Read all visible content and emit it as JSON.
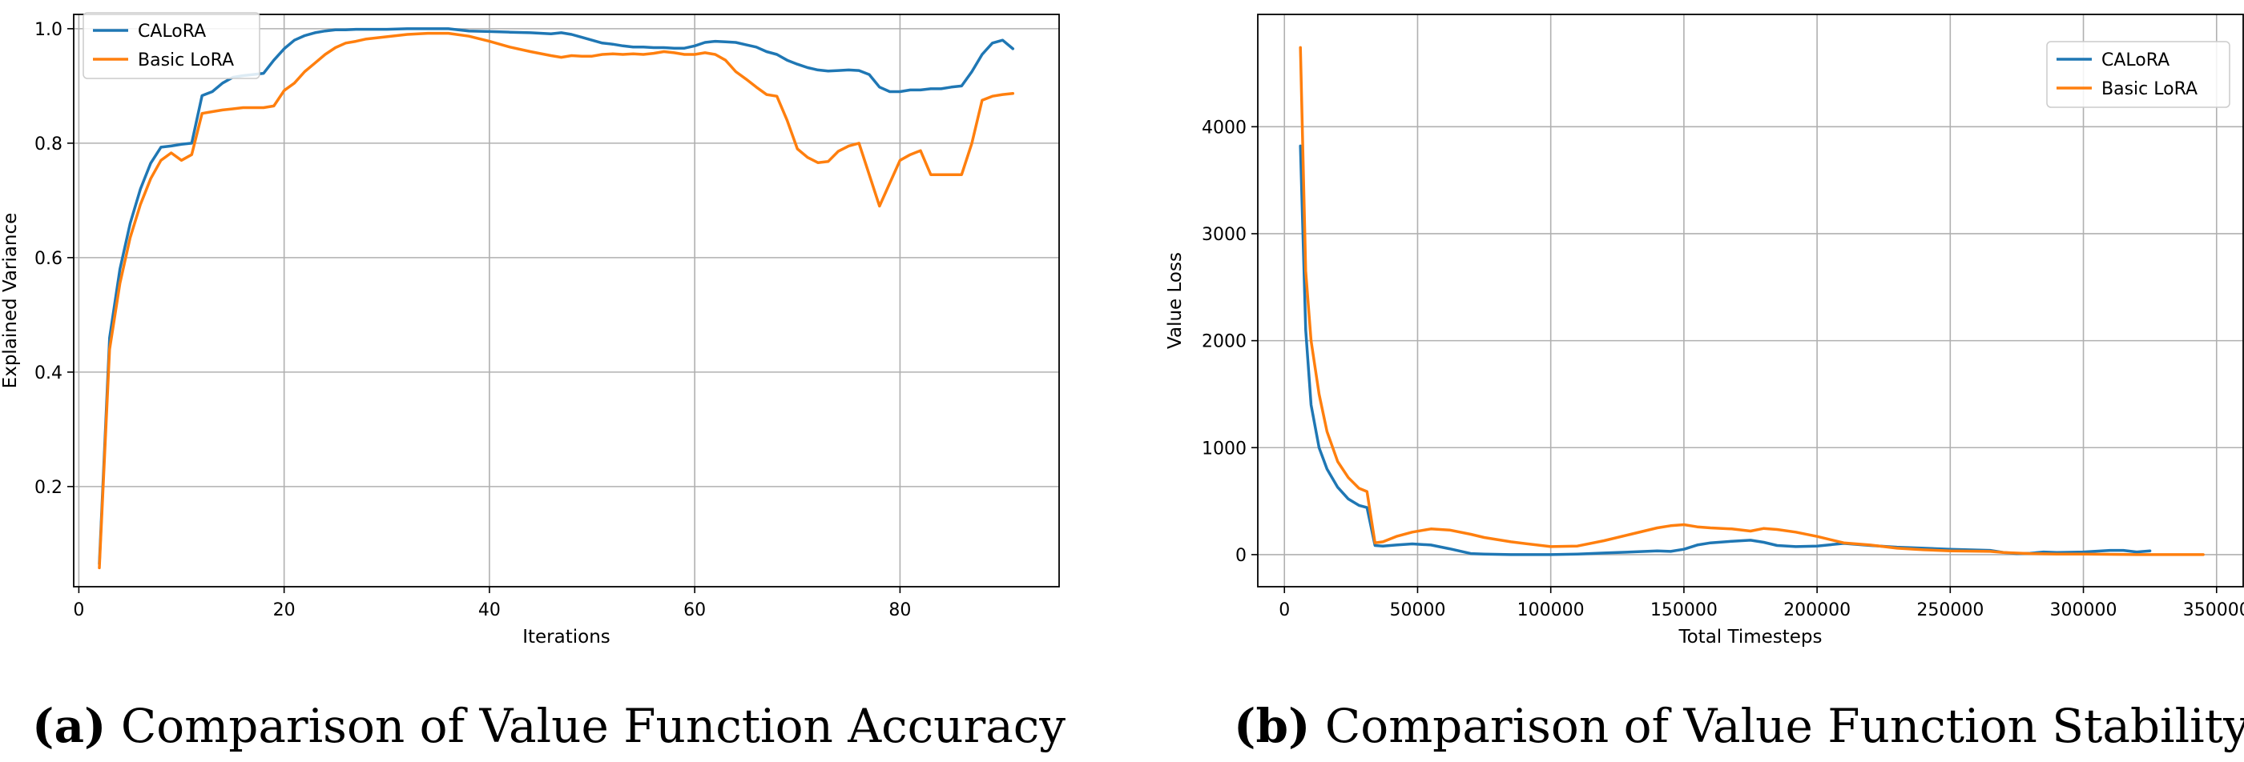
{
  "colors": {
    "calora": "#1f77b4",
    "basic_lora": "#ff7f0e",
    "grid": "#b0b0b0",
    "axis": "#000000"
  },
  "captions": [
    {
      "label": "(a)",
      "text": "Comparison of Value Function Accuracy"
    },
    {
      "label": "(b)",
      "text": "Comparison of Value Function Stability"
    }
  ],
  "chart_data": [
    {
      "type": "line",
      "title": "",
      "xlabel": "Iterations",
      "ylabel": "Explained Variance",
      "xlim": [
        -0.5,
        95.5
      ],
      "ylim": [
        0.025,
        1.025
      ],
      "xticks": [
        0,
        20,
        40,
        60,
        80
      ],
      "xtick_labels": [
        "0",
        "20",
        "40",
        "60",
        "80"
      ],
      "yticks": [
        0.2,
        0.4,
        0.6,
        0.8,
        1.0
      ],
      "ytick_labels": [
        "0.2",
        "0.4",
        "0.6",
        "0.8",
        "1.0"
      ],
      "grid": true,
      "legend_position": "top-left",
      "series": [
        {
          "name": "CALoRA",
          "x": [
            2,
            3,
            4,
            5,
            6,
            7,
            8,
            9,
            10,
            11,
            12,
            13,
            14,
            15,
            16,
            17,
            18,
            19,
            20,
            21,
            22,
            23,
            24,
            25,
            26,
            27,
            28,
            30,
            32,
            34,
            36,
            38,
            40,
            42,
            44,
            46,
            47,
            48,
            49,
            50,
            51,
            52,
            53,
            54,
            55,
            56,
            57,
            58,
            59,
            60,
            61,
            62,
            63,
            64,
            65,
            66,
            67,
            68,
            69,
            70,
            71,
            72,
            73,
            74,
            75,
            76,
            77,
            78,
            79,
            80,
            81,
            82,
            83,
            84,
            85,
            86,
            87,
            88,
            89,
            90,
            91
          ],
          "y": [
            0.065,
            0.46,
            0.58,
            0.66,
            0.72,
            0.765,
            0.793,
            0.795,
            0.798,
            0.8,
            0.883,
            0.89,
            0.905,
            0.915,
            0.918,
            0.92,
            0.922,
            0.945,
            0.965,
            0.98,
            0.988,
            0.993,
            0.996,
            0.998,
            0.998,
            0.999,
            0.999,
            0.999,
            1.0,
            1.0,
            1.0,
            0.996,
            0.995,
            0.994,
            0.993,
            0.991,
            0.993,
            0.99,
            0.985,
            0.98,
            0.975,
            0.973,
            0.97,
            0.968,
            0.968,
            0.967,
            0.967,
            0.966,
            0.966,
            0.97,
            0.976,
            0.978,
            0.977,
            0.976,
            0.972,
            0.968,
            0.96,
            0.955,
            0.945,
            0.938,
            0.932,
            0.928,
            0.926,
            0.927,
            0.928,
            0.927,
            0.92,
            0.898,
            0.89,
            0.89,
            0.893,
            0.893,
            0.895,
            0.895,
            0.898,
            0.9,
            0.925,
            0.955,
            0.975,
            0.98,
            0.965
          ]
        },
        {
          "name": "Basic LoRA",
          "x": [
            2,
            3,
            4,
            5,
            6,
            7,
            8,
            9,
            10,
            11,
            12,
            13,
            14,
            15,
            16,
            17,
            18,
            19,
            20,
            21,
            22,
            23,
            24,
            25,
            26,
            27,
            28,
            30,
            32,
            34,
            36,
            38,
            40,
            42,
            44,
            46,
            47,
            48,
            49,
            50,
            51,
            52,
            53,
            54,
            55,
            56,
            57,
            58,
            59,
            60,
            61,
            62,
            63,
            64,
            65,
            66,
            67,
            68,
            69,
            70,
            71,
            72,
            73,
            74,
            75,
            76,
            77,
            78,
            79,
            80,
            81,
            82,
            83,
            84,
            85,
            86,
            87,
            88,
            89,
            90,
            91
          ],
          "y": [
            0.058,
            0.44,
            0.555,
            0.635,
            0.693,
            0.738,
            0.77,
            0.783,
            0.77,
            0.78,
            0.852,
            0.855,
            0.858,
            0.86,
            0.862,
            0.862,
            0.862,
            0.865,
            0.892,
            0.905,
            0.925,
            0.94,
            0.955,
            0.967,
            0.975,
            0.978,
            0.982,
            0.986,
            0.99,
            0.992,
            0.992,
            0.987,
            0.978,
            0.968,
            0.96,
            0.953,
            0.95,
            0.953,
            0.952,
            0.952,
            0.955,
            0.956,
            0.955,
            0.956,
            0.955,
            0.957,
            0.96,
            0.958,
            0.955,
            0.955,
            0.958,
            0.955,
            0.945,
            0.925,
            0.912,
            0.898,
            0.885,
            0.882,
            0.84,
            0.79,
            0.775,
            0.766,
            0.768,
            0.786,
            0.795,
            0.8,
            0.745,
            0.69,
            0.73,
            0.77,
            0.78,
            0.787,
            0.745,
            0.745,
            0.745,
            0.745,
            0.8,
            0.875,
            0.882,
            0.885,
            0.887
          ]
        }
      ]
    },
    {
      "type": "line",
      "title": "",
      "xlabel": "Total Timesteps",
      "ylabel": "Value Loss",
      "xlim": [
        -10000,
        360000
      ],
      "ylim": [
        -300,
        5050
      ],
      "xticks": [
        0,
        50000,
        100000,
        150000,
        200000,
        250000,
        300000,
        350000
      ],
      "xtick_labels": [
        "0",
        "50000",
        "100000",
        "150000",
        "200000",
        "250000",
        "300000",
        "350000"
      ],
      "yticks": [
        0,
        1000,
        2000,
        3000,
        4000
      ],
      "ytick_labels": [
        "0",
        "1000",
        "2000",
        "3000",
        "4000"
      ],
      "grid": true,
      "legend_position": "top-right",
      "series": [
        {
          "name": "CALoRA",
          "x": [
            6000,
            8000,
            10000,
            13000,
            16000,
            20000,
            24000,
            28000,
            31000,
            34000,
            37000,
            42000,
            48000,
            55000,
            62000,
            70000,
            75000,
            85000,
            100000,
            110000,
            120000,
            130000,
            140000,
            145000,
            150000,
            155000,
            160000,
            168000,
            175000,
            180000,
            185000,
            192000,
            200000,
            210000,
            220000,
            230000,
            240000,
            250000,
            265000,
            270000,
            275000,
            280000,
            285000,
            290000,
            300000,
            310000,
            315000,
            320000,
            325000
          ],
          "y": [
            3820,
            2100,
            1400,
            1000,
            800,
            630,
            520,
            460,
            440,
            85,
            80,
            90,
            100,
            90,
            55,
            10,
            5,
            0,
            0,
            5,
            15,
            25,
            35,
            30,
            50,
            90,
            110,
            125,
            135,
            115,
            85,
            75,
            80,
            105,
            85,
            70,
            60,
            50,
            40,
            20,
            10,
            12,
            25,
            20,
            25,
            40,
            40,
            25,
            35
          ]
        },
        {
          "name": "Basic LoRA",
          "x": [
            6000,
            8000,
            10000,
            13000,
            16000,
            20000,
            24000,
            28000,
            31000,
            34000,
            37000,
            42000,
            48000,
            55000,
            62000,
            70000,
            75000,
            85000,
            100000,
            110000,
            120000,
            130000,
            140000,
            145000,
            150000,
            155000,
            160000,
            168000,
            175000,
            180000,
            185000,
            192000,
            200000,
            210000,
            220000,
            230000,
            240000,
            250000,
            265000,
            270000,
            280000,
            290000,
            300000,
            320000,
            345000
          ],
          "y": [
            4740,
            2650,
            2000,
            1500,
            1150,
            870,
            720,
            620,
            590,
            110,
            120,
            170,
            210,
            240,
            230,
            190,
            160,
            120,
            75,
            80,
            130,
            190,
            250,
            270,
            280,
            260,
            250,
            240,
            220,
            245,
            235,
            210,
            170,
            110,
            90,
            60,
            45,
            35,
            30,
            20,
            10,
            5,
            5,
            0,
            0
          ]
        }
      ]
    }
  ]
}
